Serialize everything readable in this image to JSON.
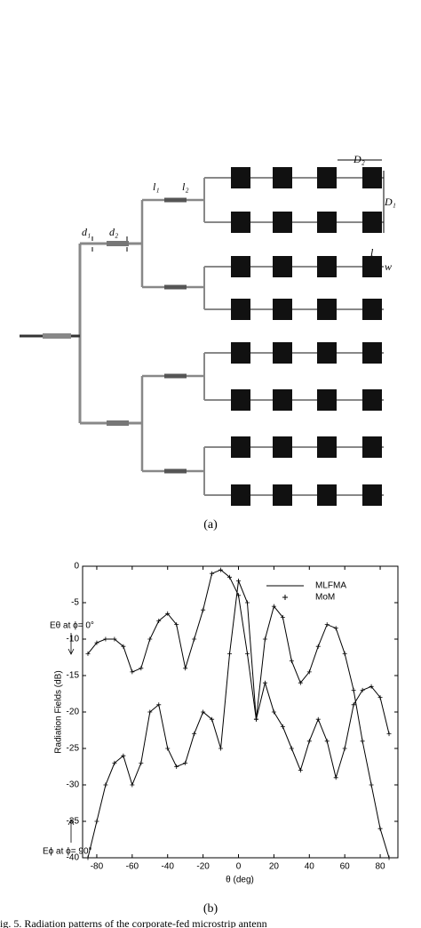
{
  "diagram": {
    "labels": {
      "d1": "d₁",
      "d2": "d₂",
      "l1": "l₁",
      "l2": "l₂",
      "D2": "D₂",
      "D1": "D₁",
      "l": "l",
      "w": "w"
    },
    "caption": "(a)"
  },
  "chart_data": {
    "type": "line",
    "y_label": "Radiation Fields (dB)",
    "x_label": "θ (deg)",
    "x": [
      -85,
      -80,
      -75,
      -70,
      -65,
      -60,
      -55,
      -50,
      -45,
      -40,
      -35,
      -30,
      -25,
      -20,
      -15,
      -10,
      -5,
      0,
      5,
      10,
      15,
      20,
      25,
      30,
      35,
      40,
      45,
      50,
      55,
      60,
      65,
      70,
      75,
      80,
      85
    ],
    "series": [
      {
        "name": "MLFMA",
        "color": "#000000",
        "style": "line",
        "curves": [
          [
            -12,
            -10.5,
            -10,
            -10,
            -11,
            -14.5,
            -14,
            -10,
            -7.5,
            -6.5,
            -8,
            -14,
            -10,
            -6,
            -1,
            -0.5,
            -1.5,
            -4,
            -12,
            -21,
            -10,
            -5.5,
            -7,
            -13,
            -16,
            -14.5,
            -11,
            -8,
            -8.5,
            -12,
            -17,
            -24,
            -30,
            -36,
            -40
          ],
          [
            -40,
            -35,
            -30,
            -27,
            -26,
            -30,
            -27,
            -20,
            -19,
            -25,
            -27.5,
            -27,
            -23,
            -20,
            -21,
            -25,
            -12,
            -2,
            -5,
            -21,
            -16,
            -20,
            -22,
            -25,
            -28,
            -24,
            -21,
            -24,
            -29,
            -25,
            -19,
            -17,
            -16.5,
            -18,
            -23
          ]
        ]
      },
      {
        "name": "MoM",
        "color": "#000000",
        "style": "marker",
        "curves": [
          [
            -12,
            -10.5,
            -10,
            -10,
            -11,
            -14.5,
            -14,
            -10,
            -7.5,
            -6.5,
            -8,
            -14,
            -10,
            -6,
            -1,
            -0.5,
            -1.5,
            -4,
            -12,
            -21,
            -10,
            -5.5,
            -7,
            -13,
            -16,
            -14.5,
            -11,
            -8,
            -8.5,
            -12,
            -17,
            -24,
            -30,
            -36,
            -40
          ],
          [
            -40,
            -35,
            -30,
            -27,
            -26,
            -30,
            -27,
            -20,
            -19,
            -25,
            -27.5,
            -27,
            -23,
            -20,
            -21,
            -25,
            -12,
            -2,
            -5,
            -21,
            -16,
            -20,
            -22,
            -25,
            -28,
            -24,
            -21,
            -24,
            -29,
            -25,
            -19,
            -17,
            -16.5,
            -18,
            -23
          ]
        ]
      }
    ],
    "annotations": [
      "Eθ at ϕ= 0°",
      "Eϕ at ϕ= 90°"
    ],
    "xlim": [
      -88,
      90
    ],
    "ylim": [
      -40,
      0
    ],
    "xticks": [
      -80,
      -60,
      -40,
      -20,
      0,
      20,
      40,
      60,
      80
    ],
    "yticks": [
      0,
      -5,
      -10,
      -15,
      -20,
      -25,
      -30,
      -35,
      -40
    ],
    "caption": "(b)"
  },
  "figure_caption": "ig. 5.  Radiation patterns of the corporate-fed microstrip antenn"
}
